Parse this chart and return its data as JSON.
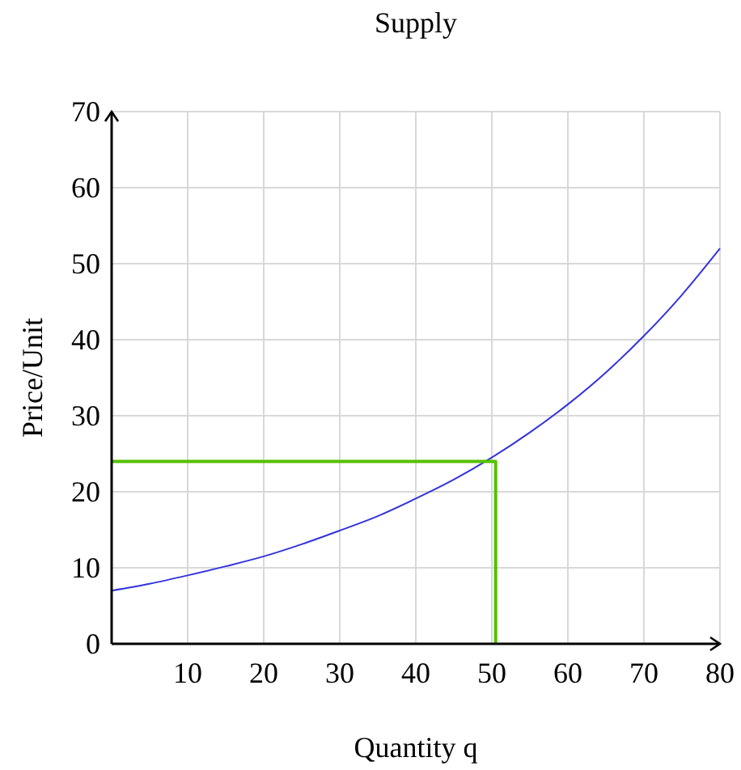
{
  "chart_data": {
    "type": "line",
    "title": "Supply",
    "xlabel": "Quantity q",
    "ylabel": "Price/Unit",
    "xlim": [
      0,
      80
    ],
    "ylim": [
      0,
      70
    ],
    "xticks": [
      10,
      20,
      30,
      40,
      50,
      60,
      70,
      80
    ],
    "yticks": [
      0,
      10,
      20,
      30,
      40,
      50,
      60,
      70
    ],
    "grid": true,
    "marker": "none",
    "line_style": "solid",
    "series": [
      {
        "color": "#3333dd",
        "x": [
          0,
          5,
          10,
          15,
          20,
          25,
          30,
          35,
          40,
          45,
          50,
          55,
          60,
          65,
          70,
          75,
          80
        ],
        "values": [
          7,
          7.9,
          9,
          10.2,
          11.5,
          13.1,
          14.9,
          16.8,
          19.1,
          21.6,
          24.5,
          27.8,
          31.5,
          35.7,
          40.5,
          45.9,
          52
        ]
      },
      {
        "color": "#55c000",
        "x": [
          0,
          50.5,
          50.5
        ],
        "values": [
          24,
          24,
          0
        ]
      }
    ]
  }
}
